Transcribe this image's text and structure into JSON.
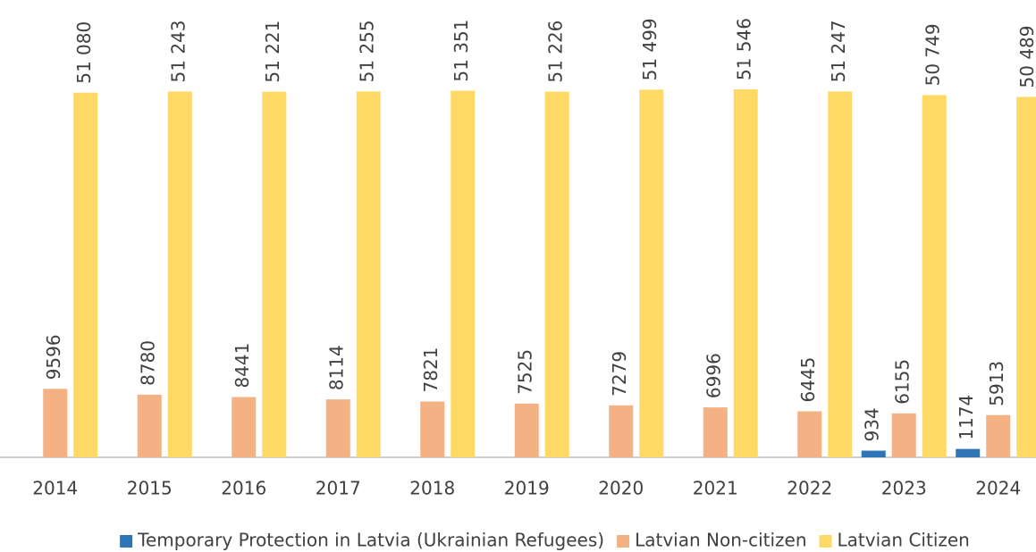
{
  "chart_data": {
    "type": "bar",
    "categories": [
      "2014",
      "2015",
      "2016",
      "2017",
      "2018",
      "2019",
      "2020",
      "2021",
      "2022",
      "2023",
      "2024"
    ],
    "series": [
      {
        "name": "Temporary Protection in Latvia (Ukrainian Refugees)",
        "color": "#2e75b6",
        "values": [
          null,
          null,
          null,
          null,
          null,
          null,
          null,
          null,
          null,
          934,
          1174
        ]
      },
      {
        "name": "Latvian Non-citizen",
        "color": "#f4b183",
        "values": [
          9596,
          8780,
          8441,
          8114,
          7821,
          7525,
          7279,
          6996,
          6445,
          6155,
          5913
        ]
      },
      {
        "name": "Latvian Citizen",
        "color": "#ffd966",
        "values": [
          51080,
          51243,
          51221,
          51255,
          51351,
          51226,
          51499,
          51546,
          51247,
          50749,
          50489
        ],
        "value_labels": [
          "51 080",
          "51 243",
          "51 221",
          "51 255",
          "51 351",
          "51 226",
          "51 499",
          "51 546",
          "51 247",
          "50 749",
          "50 489"
        ]
      }
    ],
    "ylim": [
      0,
      64000
    ],
    "legend": "bottom"
  }
}
